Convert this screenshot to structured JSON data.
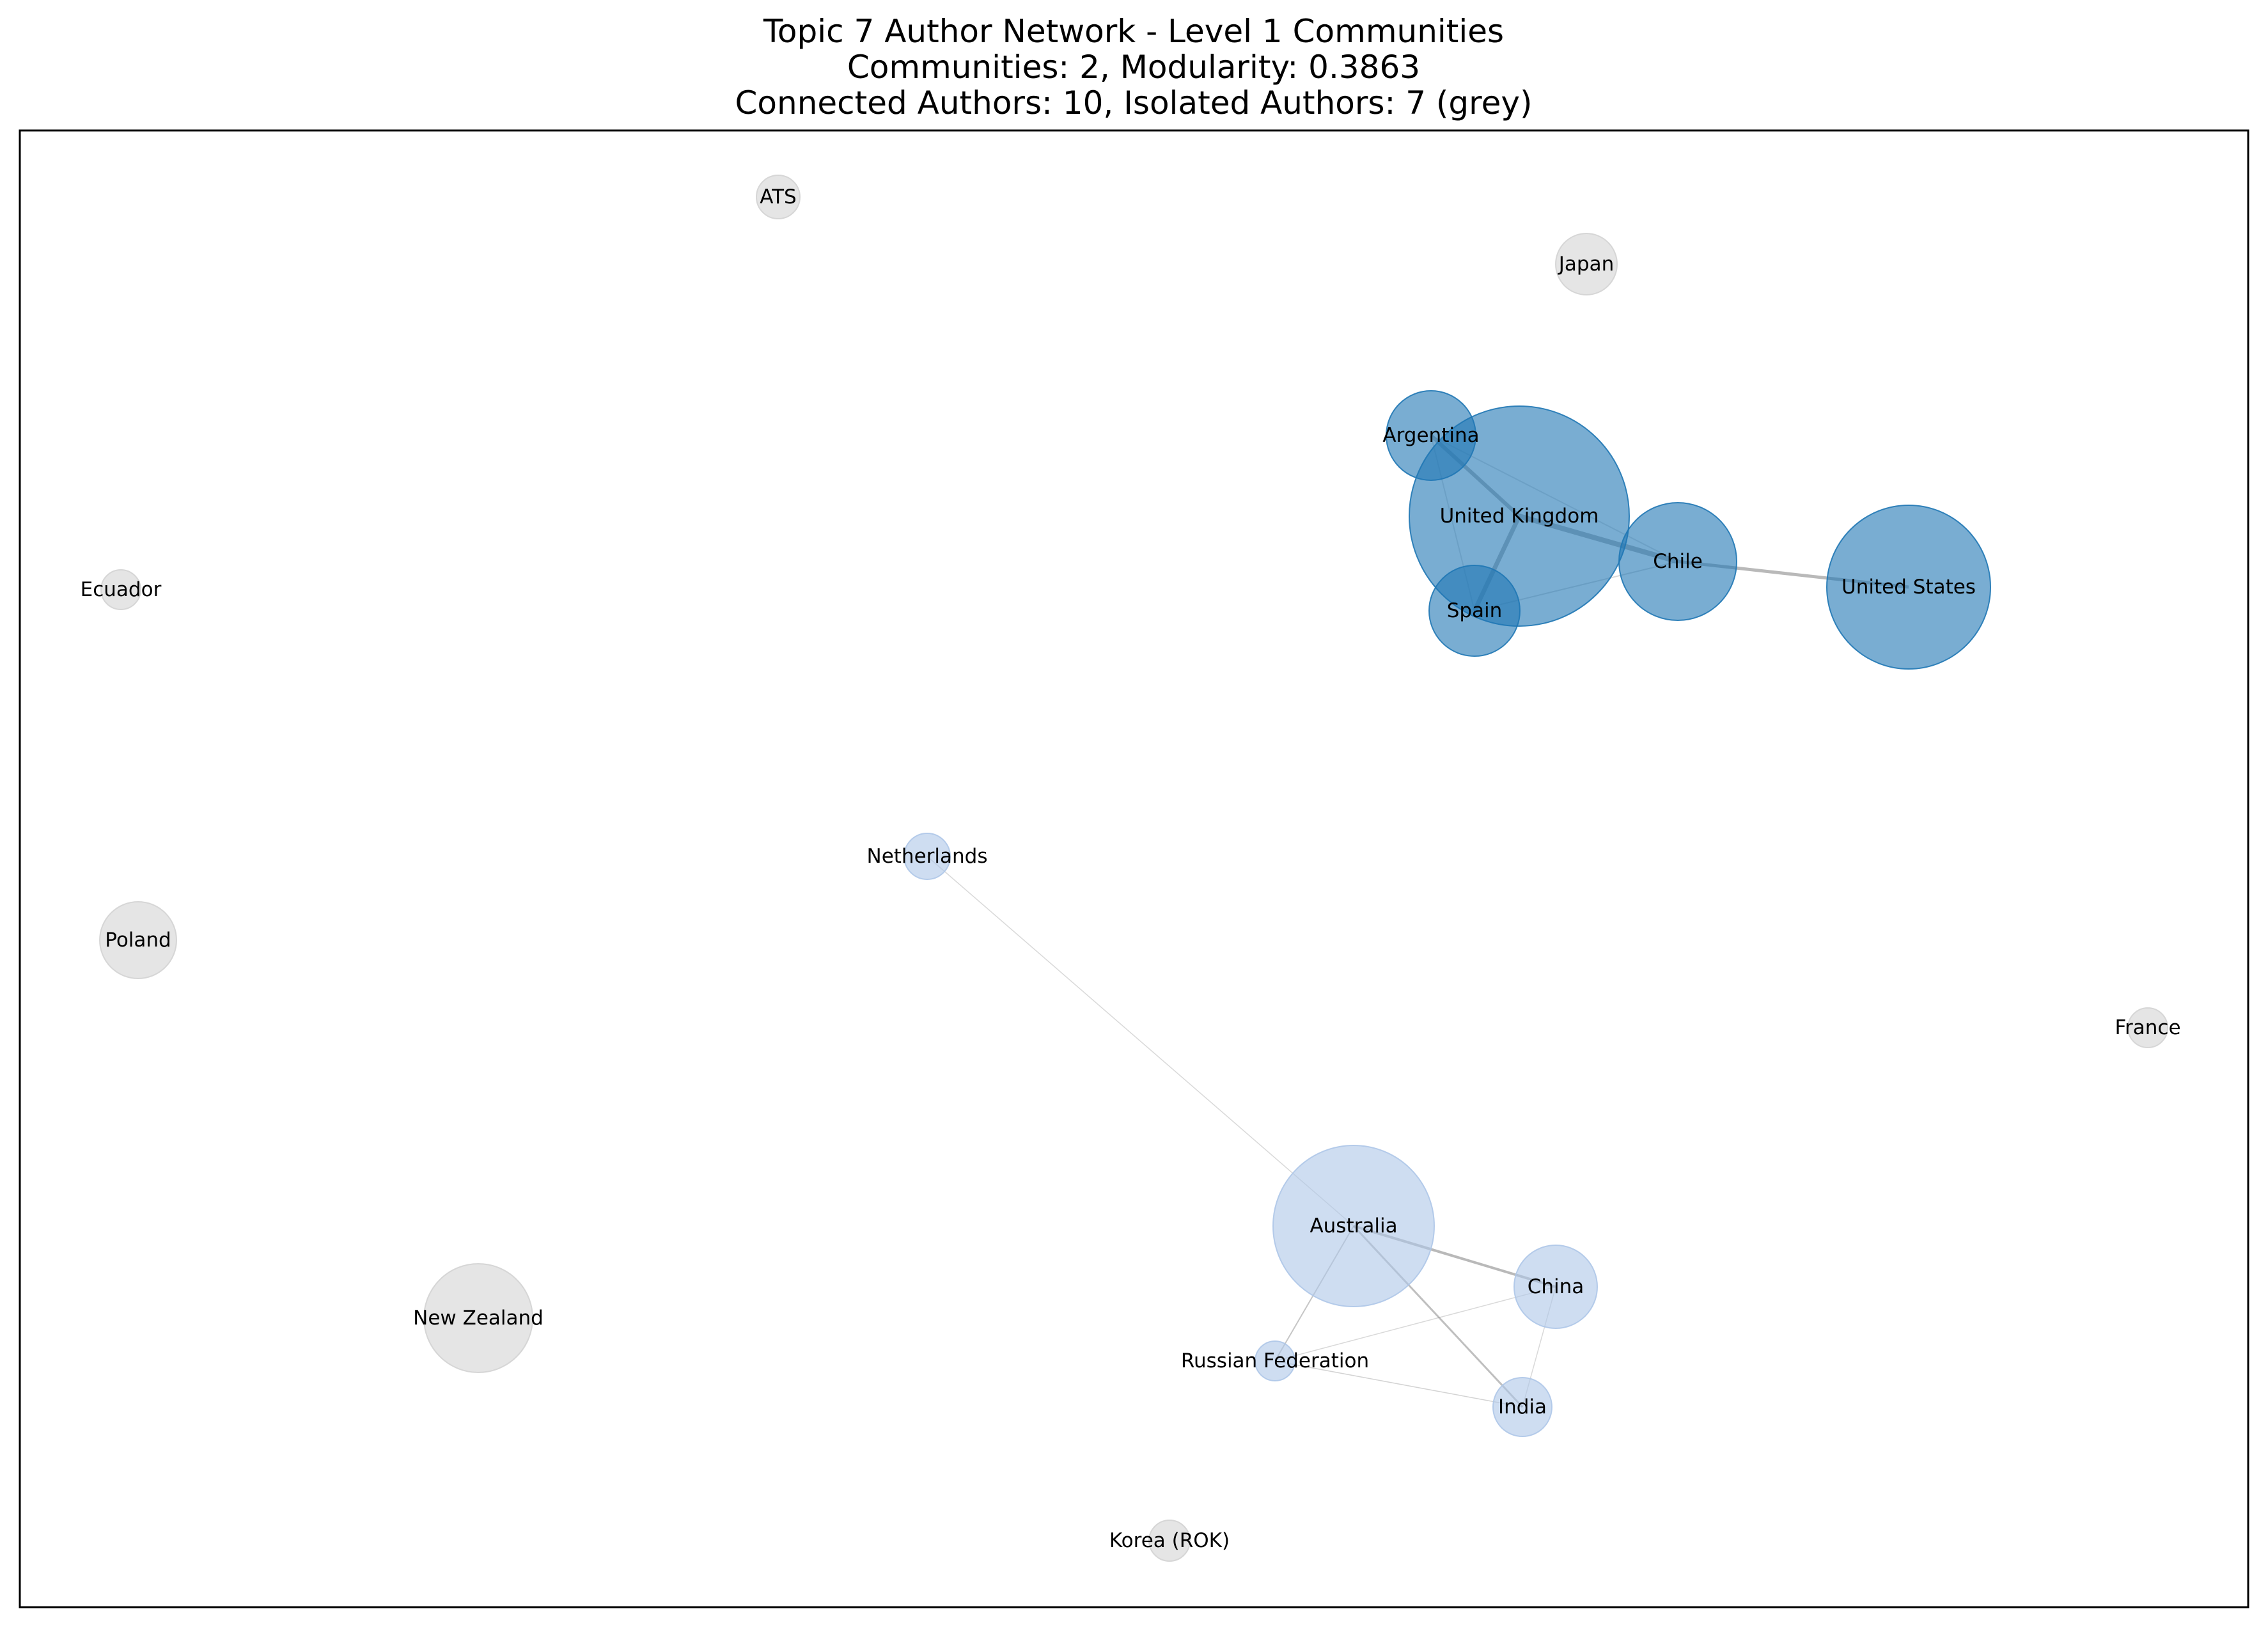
{
  "title": {
    "line1": "Topic 7 Author Network - Level 1 Communities",
    "line2": "Communities: 2, Modularity: 0.3863",
    "line3": "Connected Authors: 10, Isolated Authors: 7 (grey)"
  },
  "colors": {
    "community_dark": "#1f77b4",
    "community_light": "#aec7e8",
    "isolated": "#d3d3d3",
    "edge": "#808080",
    "frame": "#000000"
  },
  "nodes": [
    {
      "id": "ats",
      "label": "ATS",
      "group": "isolated"
    },
    {
      "id": "japan",
      "label": "Japan",
      "group": "isolated"
    },
    {
      "id": "argentina",
      "label": "Argentina",
      "group": "dark"
    },
    {
      "id": "united-kingdom",
      "label": "United Kingdom",
      "group": "dark"
    },
    {
      "id": "chile",
      "label": "Chile",
      "group": "dark"
    },
    {
      "id": "united-states",
      "label": "United States",
      "group": "dark"
    },
    {
      "id": "spain",
      "label": "Spain",
      "group": "dark"
    },
    {
      "id": "ecuador",
      "label": "Ecuador",
      "group": "isolated"
    },
    {
      "id": "netherlands",
      "label": "Netherlands",
      "group": "light"
    },
    {
      "id": "poland",
      "label": "Poland",
      "group": "isolated"
    },
    {
      "id": "france",
      "label": "France",
      "group": "isolated"
    },
    {
      "id": "australia",
      "label": "Australia",
      "group": "light"
    },
    {
      "id": "china",
      "label": "China",
      "group": "light"
    },
    {
      "id": "new-zealand",
      "label": "New Zealand",
      "group": "isolated"
    },
    {
      "id": "russian-federation",
      "label": "Russian Federation",
      "group": "light"
    },
    {
      "id": "india",
      "label": "India",
      "group": "light"
    },
    {
      "id": "korea-rok",
      "label": "Korea (ROK)",
      "group": "isolated"
    }
  ],
  "edges": [
    {
      "source": "argentina",
      "target": "united-kingdom"
    },
    {
      "source": "argentina",
      "target": "chile"
    },
    {
      "source": "argentina",
      "target": "spain"
    },
    {
      "source": "united-kingdom",
      "target": "chile"
    },
    {
      "source": "united-kingdom",
      "target": "spain"
    },
    {
      "source": "chile",
      "target": "united-states"
    },
    {
      "source": "chile",
      "target": "spain"
    },
    {
      "source": "netherlands",
      "target": "australia"
    },
    {
      "source": "australia",
      "target": "china"
    },
    {
      "source": "australia",
      "target": "india"
    },
    {
      "source": "australia",
      "target": "russian-federation"
    },
    {
      "source": "china",
      "target": "russian-federation"
    },
    {
      "source": "china",
      "target": "india"
    },
    {
      "source": "russian-federation",
      "target": "india"
    }
  ]
}
